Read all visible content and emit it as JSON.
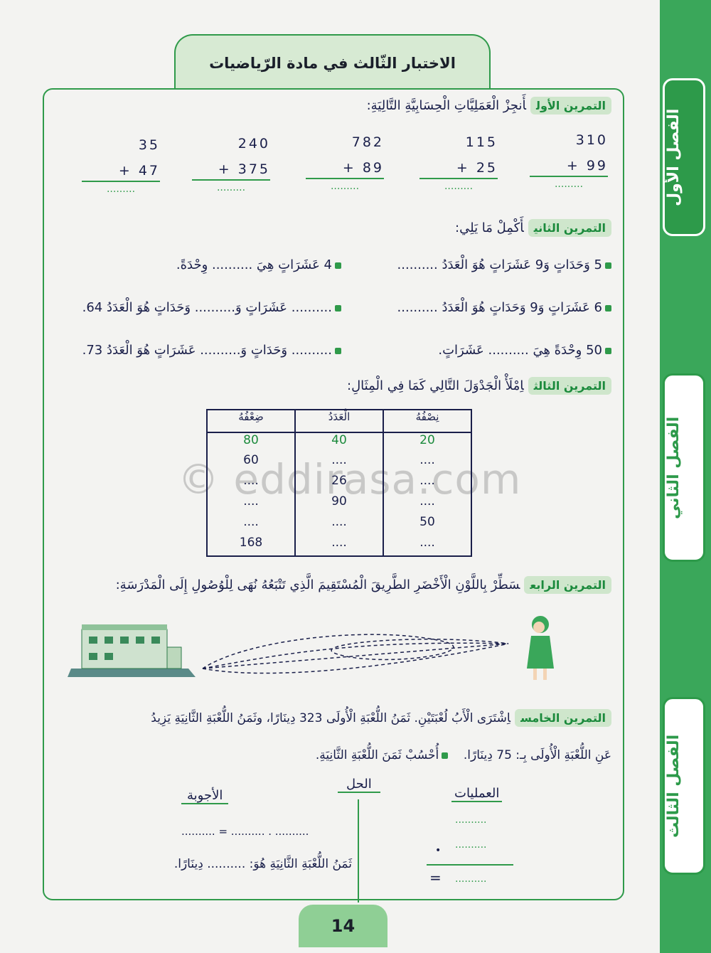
{
  "title": "الاختبار الثّالث في مادة الرّياضيات",
  "chapters": [
    "الفصل الأول",
    "الفصل الثاني",
    "الفصل الثالث"
  ],
  "watermark": "© eddirasa.com",
  "page_number": "14",
  "ex1": {
    "label": "التمرين الأول",
    "instruction": "أَنجِزْ الْعَمَلِيَّاتِ الْحِسَابِيَّةِ التَّالِيَةِ:",
    "additions": [
      {
        "a": "310",
        "b": "99"
      },
      {
        "a": "115",
        "b": "25"
      },
      {
        "a": "782",
        "b": "89"
      },
      {
        "a": "240",
        "b": "375"
      },
      {
        "a": "35",
        "b": "47"
      }
    ],
    "blank": "........."
  },
  "ex2": {
    "label": "التمرين الثاني",
    "instruction": "أَكْمِلْ مَا يَلِي:",
    "rows": [
      [
        "5 وَحَدَاتٍ وَ9 عَشَرَاتٍ هُوَ الْعَدَدُ ..........",
        "4 عَشَرَاتٍ هِيَ .......... وِحْدَةً."
      ],
      [
        "6 عَشَرَاتٍ وَ9 وَحَدَاتٍ هُوَ الْعَدَدُ ..........",
        ".......... عَشَرَاتٍ وَ.......... وَحَدَاتٍ هُوَ الْعَدَدُ 64."
      ],
      [
        "50 وِحْدَةً هِيَ .......... عَشَرَاتٍ.",
        ".......... وَحَدَاتٍ وَ.......... عَشَرَاتٍ هُوَ الْعَدَدُ 73."
      ]
    ]
  },
  "ex3": {
    "label": "التمرين الثالث",
    "instruction": "اِمْلَأْ الْجَدْوَلَ التَّالِي كَمَا فِي الْمِثَالِ:",
    "headers": [
      "نِصْفُهُ",
      "الْعَدَدُ",
      "ضِعْفُهُ"
    ],
    "rows": [
      [
        "20",
        "40",
        "80"
      ],
      [
        "....",
        "....",
        "60"
      ],
      [
        "....",
        "26",
        "...."
      ],
      [
        "....",
        "90",
        "...."
      ],
      [
        "50",
        "....",
        "...."
      ],
      [
        "....",
        "....",
        "168"
      ]
    ]
  },
  "ex4": {
    "label": "التمرين الرابع",
    "instruction": "سَطِّرْ بِاللَّوْنِ الْأَخْضَرِ الطَّرِيقَ الْمُسْتَقِيمَ الَّذِي تَتْبَعُهُ نُهَى لِلْوُصُولِ إِلَى الْمَدْرَسَةِ:"
  },
  "ex5": {
    "label": "التمرين الخامس",
    "line1": "اِشْتَرَى الْأَبُ لُعْبَتَيْنِ. ثَمَنُ اللُّعْبَةِ الْأُولَى 323 دِينَارًا، وثَمَنُ اللُّعْبَةِ الثَّانِيَةِ يَزِيدُ",
    "line2": "عَنِ اللُّعْبَةِ الْأُولَى بِـ: 75 دِينَارًا.",
    "task": "أُحْسُبْ ثَمَنَ اللُّعْبَةِ الثَّانِيَةِ.",
    "col_operations": "العمليات",
    "col_solution": "الحل",
    "col_answers": "الأجوبة",
    "equation": ".......... = .......... . ..........",
    "answer": "ثَمَنُ اللُّعْبَةِ الثَّانِيَةِ هُوَ: .......... دِينَارًا.",
    "blank": "..........",
    "eq_sign": "="
  }
}
